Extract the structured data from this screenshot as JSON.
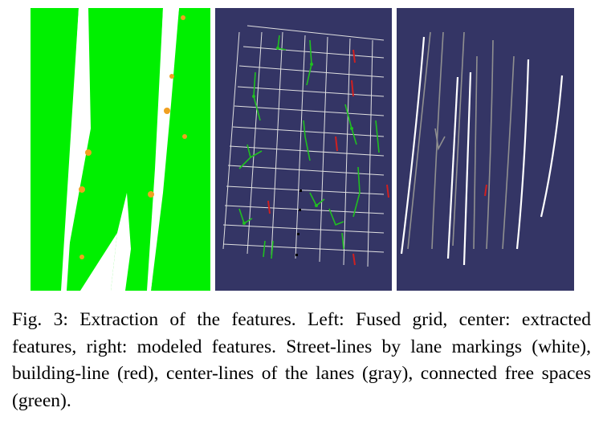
{
  "figure": {
    "caption": "Fig. 3: Extraction of the features. Left: Fused grid, center: extracted features, right: modeled features. Street-lines by lane markings (white), building-line (red), center-lines of the lanes (gray), connected free spaces (green)."
  },
  "colors": {
    "free_space_green": "#00f000",
    "occupied_orange": "#f0a020",
    "background_navy": "#343565",
    "street_line_white": "#ffffff",
    "building_line_red": "#d02020",
    "center_line_gray": "#909090",
    "connected_free_green": "#20c020"
  }
}
